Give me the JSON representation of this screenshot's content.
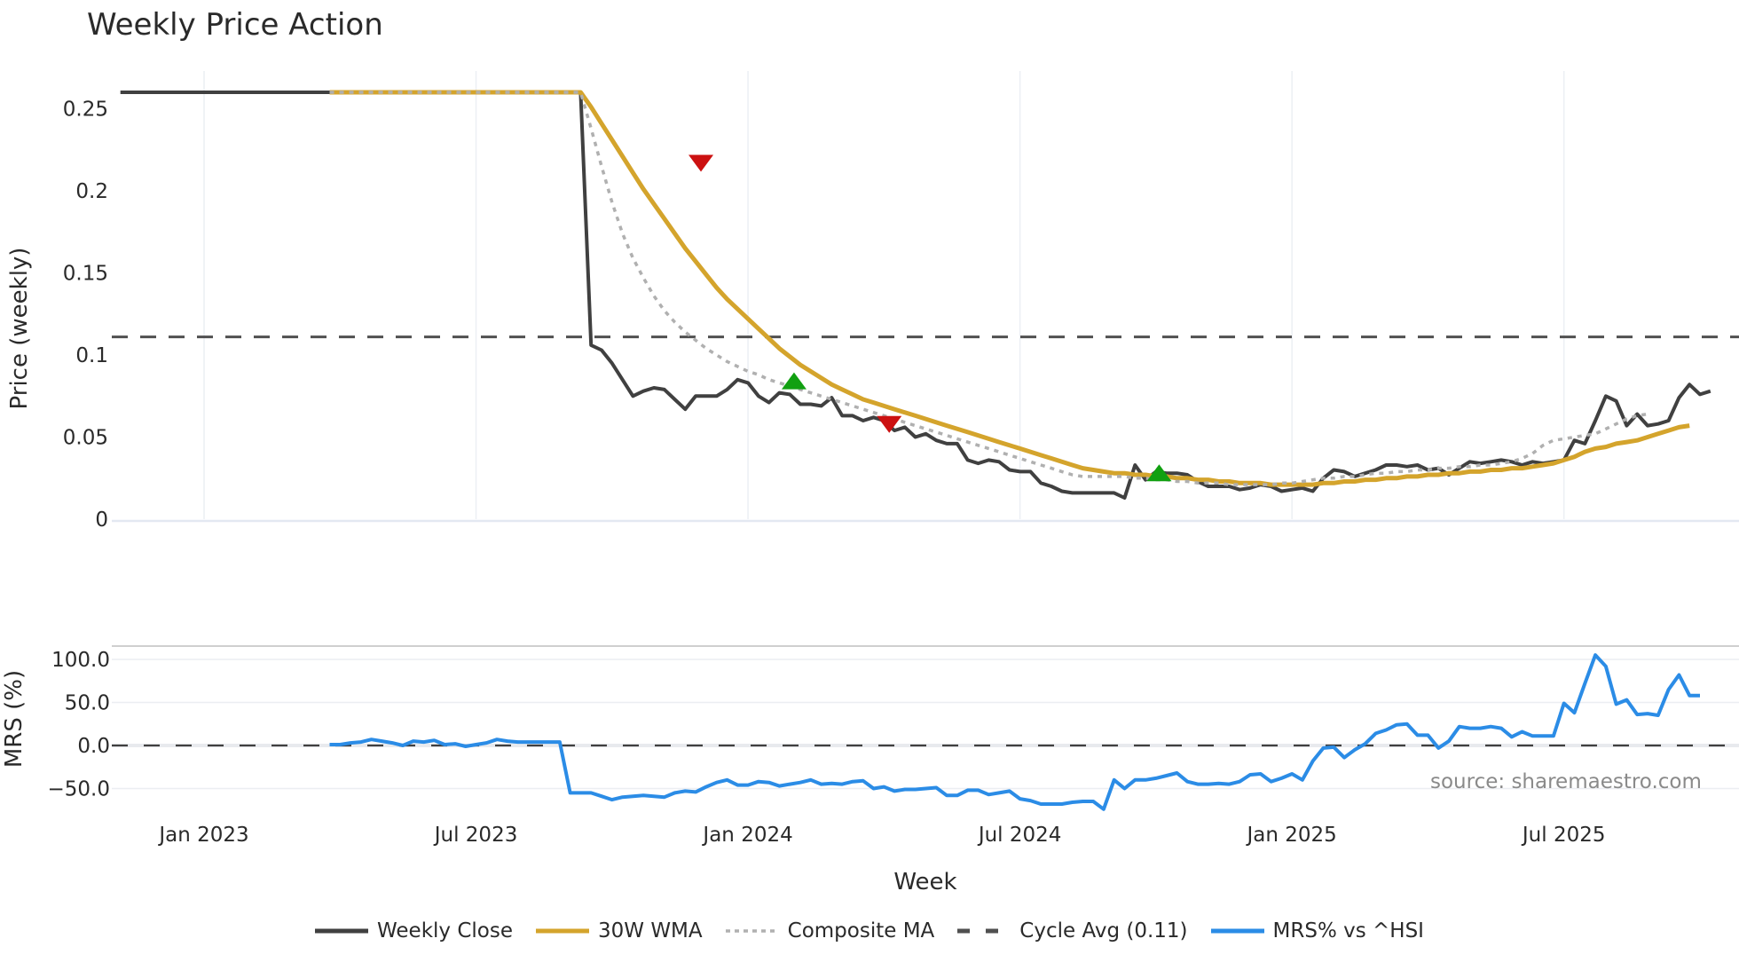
{
  "title": "Weekly Price Action",
  "source_note": "source: sharemaestro.com",
  "xaxis": {
    "title": "Week",
    "ticks": [
      {
        "label": "Jan 2023",
        "week": 0
      },
      {
        "label": "Jul 2023",
        "week": 26
      },
      {
        "label": "Jan 2024",
        "week": 52
      },
      {
        "label": "Jul 2024",
        "week": 78
      },
      {
        "label": "Jan 2025",
        "week": 104
      },
      {
        "label": "Jul 2025",
        "week": 130
      }
    ]
  },
  "price_panel": {
    "ylabel": "Price (weekly)",
    "ticks": [
      {
        "label": "0",
        "value": 0
      },
      {
        "label": "0.05",
        "value": 0.05
      },
      {
        "label": "0.1",
        "value": 0.1
      },
      {
        "label": "0.15",
        "value": 0.15
      },
      {
        "label": "0.2",
        "value": 0.2
      },
      {
        "label": "0.25",
        "value": 0.25
      }
    ]
  },
  "mrs_panel": {
    "ylabel": "MRS (%)",
    "ticks": [
      {
        "label": "100.0",
        "value": 100
      },
      {
        "label": "50.0",
        "value": 50
      },
      {
        "label": "0.0",
        "value": 0
      },
      {
        "label": "−50.0",
        "value": -50
      }
    ]
  },
  "legend": [
    {
      "label": "Weekly Close",
      "color": "#404040",
      "style": "solid"
    },
    {
      "label": "30W WMA",
      "color": "#d4a42c",
      "style": "solid"
    },
    {
      "label": "Composite MA",
      "color": "#b0b0b0",
      "style": "dotted"
    },
    {
      "label": "Cycle Avg (0.11)",
      "color": "#505050",
      "style": "dashed"
    },
    {
      "label": "MRS% vs ^HSI",
      "color": "#2b8ce6",
      "style": "solid"
    }
  ],
  "chart_data": {
    "type": "line",
    "title": "Weekly Price Action",
    "xlabel": "Week",
    "x_start_week": -9,
    "x_unit": "weeks relative to Jan 2023",
    "panels": [
      {
        "name": "price",
        "ylabel": "Price (weekly)",
        "ylim": [
          0,
          0.27
        ],
        "hlines": [
          {
            "name": "Cycle Avg (0.11)",
            "value": 0.111
          }
        ],
        "series": [
          {
            "name": "Weekly Close",
            "start_week": -9,
            "values": [
              0.26,
              0.26,
              0.26,
              0.26,
              0.26,
              0.26,
              0.26,
              0.26,
              0.26,
              0.26,
              0.26,
              0.26,
              0.26,
              0.26,
              0.26,
              0.26,
              0.26,
              0.26,
              0.26,
              0.26,
              0.26,
              0.26,
              0.26,
              0.26,
              0.26,
              0.26,
              0.26,
              0.26,
              0.26,
              0.26,
              0.26,
              0.26,
              0.26,
              0.26,
              0.26,
              0.26,
              0.26,
              0.26,
              0.26,
              0.26,
              0.26,
              0.26,
              0.26,
              0.26,
              0.26,
              0.26,
              0.106,
              0.103,
              0.095,
              0.085,
              0.075,
              0.078,
              0.08,
              0.079,
              0.073,
              0.067,
              0.075,
              0.075,
              0.075,
              0.079,
              0.085,
              0.083,
              0.075,
              0.071,
              0.077,
              0.076,
              0.07,
              0.07,
              0.069,
              0.074,
              0.063,
              0.063,
              0.06,
              0.062,
              0.06,
              0.054,
              0.056,
              0.05,
              0.052,
              0.048,
              0.046,
              0.046,
              0.036,
              0.034,
              0.036,
              0.035,
              0.03,
              0.029,
              0.029,
              0.022,
              0.02,
              0.017,
              0.016,
              0.016,
              0.016,
              0.016,
              0.016,
              0.013,
              0.033,
              0.024,
              0.029,
              0.028,
              0.028,
              0.027,
              0.023,
              0.02,
              0.02,
              0.02,
              0.018,
              0.019,
              0.021,
              0.02,
              0.017,
              0.018,
              0.019,
              0.017,
              0.025,
              0.03,
              0.029,
              0.026,
              0.028,
              0.03,
              0.033,
              0.033,
              0.032,
              0.033,
              0.03,
              0.031,
              0.027,
              0.031,
              0.035,
              0.034,
              0.035,
              0.036,
              0.035,
              0.033,
              0.035,
              0.034,
              0.035,
              0.036,
              0.048,
              0.046,
              0.06,
              0.075,
              0.072,
              0.057,
              0.064,
              0.057,
              0.058,
              0.06,
              0.074,
              0.082,
              0.076,
              0.078
            ]
          },
          {
            "name": "30W WMA",
            "start_week": -9,
            "values": [
              null,
              null,
              null,
              null,
              null,
              null,
              null,
              null,
              null,
              null,
              null,
              null,
              null,
              null,
              null,
              null,
              null,
              null,
              null,
              null,
              null,
              0.26,
              0.26,
              0.26,
              0.26,
              0.26,
              0.26,
              0.26,
              0.26,
              0.26,
              0.26,
              0.26,
              0.26,
              0.26,
              0.26,
              0.26,
              0.26,
              0.26,
              0.26,
              0.26,
              0.26,
              0.26,
              0.26,
              0.26,
              0.26,
              0.26,
              0.251,
              0.241,
              0.231,
              0.221,
              0.211,
              0.201,
              0.192,
              0.183,
              0.174,
              0.165,
              0.157,
              0.149,
              0.141,
              0.134,
              0.128,
              0.122,
              0.116,
              0.11,
              0.104,
              0.099,
              0.094,
              0.09,
              0.086,
              0.082,
              0.079,
              0.076,
              0.073,
              0.071,
              0.069,
              0.067,
              0.065,
              0.063,
              0.061,
              0.059,
              0.057,
              0.055,
              0.053,
              0.051,
              0.049,
              0.047,
              0.045,
              0.043,
              0.041,
              0.039,
              0.037,
              0.035,
              0.033,
              0.031,
              0.03,
              0.029,
              0.028,
              0.028,
              0.027,
              0.027,
              0.026,
              0.026,
              0.025,
              0.025,
              0.024,
              0.024,
              0.023,
              0.023,
              0.022,
              0.022,
              0.022,
              0.021,
              0.021,
              0.021,
              0.021,
              0.021,
              0.022,
              0.022,
              0.023,
              0.023,
              0.024,
              0.024,
              0.025,
              0.025,
              0.026,
              0.026,
              0.027,
              0.027,
              0.028,
              0.028,
              0.029,
              0.029,
              0.03,
              0.03,
              0.031,
              0.031,
              0.032,
              0.033,
              0.034,
              0.036,
              0.038,
              0.041,
              0.043,
              0.044,
              0.046,
              0.047,
              0.048,
              0.05,
              0.052,
              0.054,
              0.056,
              0.057
            ]
          },
          {
            "name": "Composite MA",
            "start_week": -9,
            "values": [
              null,
              null,
              null,
              null,
              null,
              null,
              null,
              null,
              null,
              null,
              null,
              null,
              null,
              null,
              null,
              null,
              null,
              null,
              null,
              null,
              null,
              0.26,
              0.26,
              0.26,
              0.26,
              0.26,
              0.26,
              0.26,
              0.26,
              0.26,
              0.26,
              0.26,
              0.26,
              0.26,
              0.26,
              0.26,
              0.26,
              0.26,
              0.26,
              0.26,
              0.26,
              0.26,
              0.26,
              0.26,
              0.26,
              0.26,
              0.238,
              0.215,
              0.193,
              0.174,
              0.159,
              0.147,
              0.136,
              0.127,
              0.12,
              0.114,
              0.109,
              0.104,
              0.1,
              0.096,
              0.093,
              0.09,
              0.088,
              0.085,
              0.083,
              0.081,
              0.079,
              0.077,
              0.075,
              0.073,
              0.071,
              0.069,
              0.067,
              0.065,
              0.063,
              0.061,
              0.059,
              0.057,
              0.055,
              0.053,
              0.051,
              0.049,
              0.047,
              0.045,
              0.043,
              0.041,
              0.039,
              0.037,
              0.035,
              0.033,
              0.031,
              0.029,
              0.027,
              0.026,
              0.026,
              0.026,
              0.026,
              0.026,
              0.025,
              0.025,
              0.024,
              0.024,
              0.023,
              0.023,
              0.022,
              0.022,
              0.022,
              0.021,
              0.021,
              0.021,
              0.021,
              0.021,
              0.022,
              0.022,
              0.023,
              0.024,
              0.025,
              0.025,
              0.026,
              0.026,
              0.027,
              0.028,
              0.028,
              0.029,
              0.029,
              0.03,
              0.03,
              0.031,
              0.031,
              0.032,
              0.032,
              0.033,
              0.033,
              0.034,
              0.035,
              0.037,
              0.04,
              0.045,
              0.048,
              0.049,
              0.05,
              0.051,
              0.052,
              0.055,
              0.058,
              0.061,
              0.063,
              0.064
            ]
          }
        ],
        "markers": [
          {
            "type": "sell",
            "shape": "triangle-down",
            "color": "#cc1111",
            "week": 47.5,
            "value": 0.217
          },
          {
            "type": "buy",
            "shape": "triangle-up",
            "color": "#11a011",
            "week": 56.4,
            "value": 0.084
          },
          {
            "type": "sell",
            "shape": "triangle-down",
            "color": "#cc1111",
            "week": 65.5,
            "value": 0.058
          },
          {
            "type": "buy",
            "shape": "triangle-up",
            "color": "#11a011",
            "week": 91.3,
            "value": 0.028
          }
        ]
      },
      {
        "name": "mrs",
        "ylabel": "MRS (%)",
        "ylim": [
          -75,
          115
        ],
        "hlines": [
          {
            "name": "zero",
            "value": 0
          }
        ],
        "series": [
          {
            "name": "MRS% vs ^HSI",
            "start_week": 12,
            "values": [
              1,
              1,
              3,
              4,
              7,
              5,
              3,
              0,
              5,
              4,
              6,
              1,
              2,
              -1,
              1,
              3,
              7,
              5,
              4,
              4,
              4,
              4,
              4,
              -55,
              -55,
              -55,
              -59,
              -63,
              -60,
              -59,
              -58,
              -59,
              -60,
              -55,
              -53,
              -54,
              -48,
              -43,
              -40,
              -46,
              -46,
              -42,
              -43,
              -47,
              -45,
              -43,
              -40,
              -45,
              -44,
              -45,
              -42,
              -41,
              -50,
              -48,
              -53,
              -51,
              -51,
              -50,
              -49,
              -58,
              -58,
              -52,
              -52,
              -57,
              -55,
              -53,
              -62,
              -64,
              -68,
              -68,
              -68,
              -66,
              -65,
              -65,
              -74,
              -40,
              -50,
              -40,
              -40,
              -38,
              -35,
              -32,
              -42,
              -45,
              -45,
              -44,
              -45,
              -42,
              -34,
              -33,
              -42,
              -38,
              -33,
              -40,
              -18,
              -3,
              -2,
              -14,
              -5,
              2,
              14,
              18,
              24,
              25,
              12,
              12,
              -3,
              5,
              22,
              20,
              20,
              22,
              20,
              10,
              16,
              11,
              11,
              11,
              49,
              38,
              72,
              105,
              92,
              48,
              53,
              36,
              37,
              35,
              65,
              82,
              58,
              58
            ]
          }
        ]
      }
    ],
    "legend_position": "bottom-center",
    "grid": true
  }
}
